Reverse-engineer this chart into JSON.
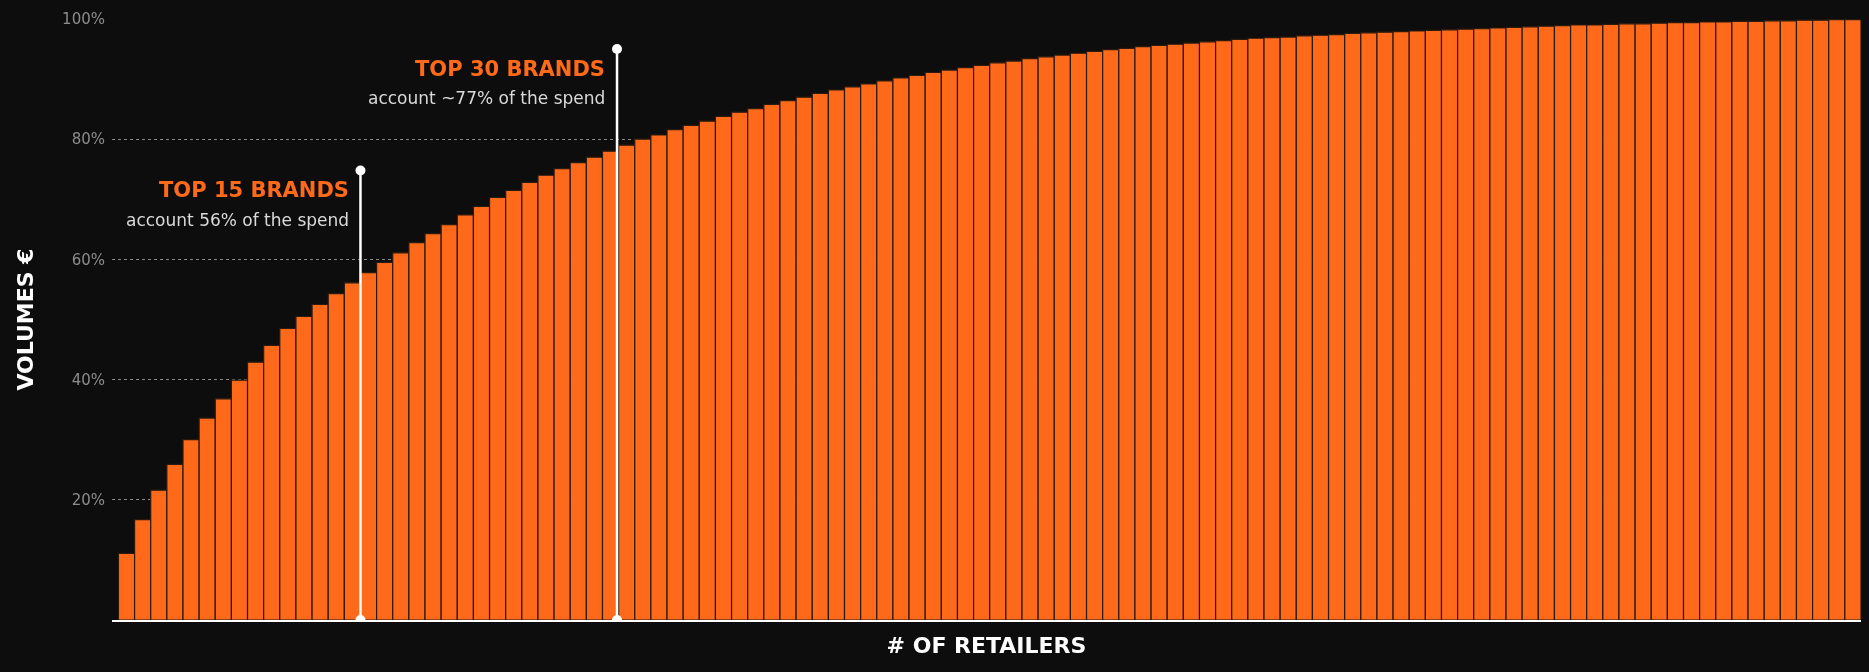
{
  "chart_data": {
    "type": "bar",
    "xlabel": "# OF RETAILERS",
    "ylabel": "VOLUMES €",
    "categories": [
      null,
      null,
      null,
      null,
      null,
      null,
      null,
      null,
      null,
      null,
      null,
      null,
      null,
      null,
      null,
      null,
      null,
      null,
      null,
      null,
      null,
      null,
      null,
      null,
      null,
      null,
      null,
      null,
      null,
      null,
      null,
      null,
      null,
      null,
      null,
      null,
      null,
      null,
      null,
      null,
      null,
      null,
      null,
      null,
      null,
      null,
      null,
      null,
      null,
      null,
      null,
      null,
      null,
      null,
      null,
      null,
      null,
      null,
      null,
      null,
      null,
      null,
      null,
      null,
      null,
      null,
      null,
      null,
      null,
      null,
      null,
      null,
      null,
      null,
      null,
      null,
      null,
      null,
      null,
      null,
      null,
      null,
      null,
      null,
      null,
      null,
      null,
      null,
      null,
      null,
      null,
      null,
      null,
      null,
      null,
      null,
      null,
      null,
      null,
      null,
      null,
      null,
      null,
      null,
      null,
      null,
      null,
      null
    ],
    "values": [
      11.1,
      16.7,
      21.6,
      25.9,
      30.0,
      33.6,
      36.8,
      39.9,
      42.9,
      45.7,
      48.5,
      50.5,
      52.5,
      54.3,
      56.1,
      57.8,
      59.5,
      61.1,
      62.8,
      64.3,
      65.8,
      67.4,
      68.8,
      70.3,
      71.5,
      72.8,
      74.0,
      75.1,
      76.1,
      77.0,
      78.0,
      79.0,
      80.0,
      80.7,
      81.6,
      82.3,
      83.0,
      83.8,
      84.5,
      85.1,
      85.8,
      86.4,
      87.0,
      87.6,
      88.2,
      88.7,
      89.2,
      89.7,
      90.2,
      90.6,
      91.1,
      91.5,
      91.9,
      92.3,
      92.7,
      93.0,
      93.4,
      93.7,
      94.0,
      94.3,
      94.6,
      94.9,
      95.1,
      95.4,
      95.6,
      95.8,
      96.0,
      96.2,
      96.4,
      96.6,
      96.8,
      96.9,
      97.0,
      97.2,
      97.3,
      97.4,
      97.6,
      97.7,
      97.8,
      97.9,
      98.0,
      98.1,
      98.2,
      98.3,
      98.4,
      98.5,
      98.6,
      98.7,
      98.8,
      98.9,
      99.0,
      99.0,
      99.1,
      99.2,
      99.2,
      99.3,
      99.4,
      99.4,
      99.5,
      99.5,
      99.6,
      99.6,
      99.7,
      99.7,
      99.8,
      99.8,
      99.9,
      99.9
    ],
    "color": "#ff6a1a",
    "ylim": [
      0,
      100
    ],
    "yticks": [
      {
        "value": 20,
        "label": "20%"
      },
      {
        "value": 40,
        "label": "40%"
      },
      {
        "value": 60,
        "label": "60%"
      },
      {
        "value": 80,
        "label": "80%"
      },
      {
        "value": 100,
        "label": "100%"
      }
    ],
    "grid": "y",
    "annotations": [
      "TOP 15 BRANDS",
      "account 56% of the spend",
      "TOP 30 BRANDS",
      "account ~77% of the spend"
    ]
  }
}
